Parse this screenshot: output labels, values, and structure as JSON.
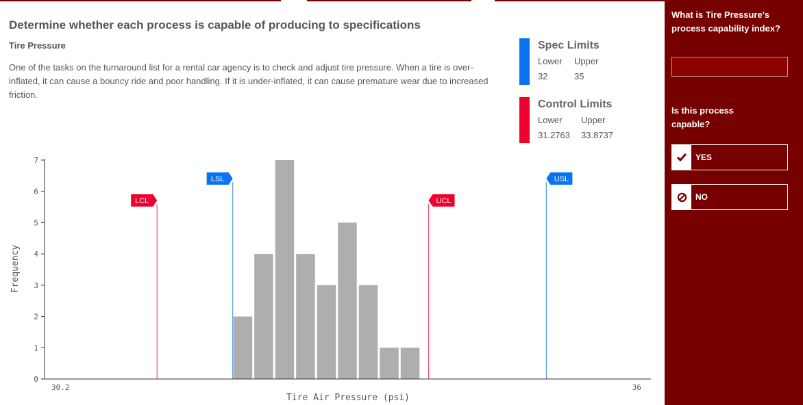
{
  "title": "Determine whether each process is capable of producing to specifications",
  "subtitle": "Tire Pressure",
  "description": "One of the tasks on the turnaround list for a rental car agency is to check and adjust tire pressure. When a tire is over-inflated, it can cause a bouncy ride and poor handling. If it is under-inflated, it can cause premature wear due to increased friction.",
  "spec_limits": {
    "title": "Spec Limits",
    "lower_label": "Lower",
    "upper_label": "Upper",
    "lower": "32",
    "upper": "35",
    "color": "#0a74f0"
  },
  "control_limits": {
    "title": "Control Limits",
    "lower_label": "Lower",
    "upper_label": "Upper",
    "lower": "31.2763",
    "upper": "33.8737",
    "color": "#f0002e"
  },
  "chart_data": {
    "type": "bar",
    "xlabel": "Tire Air Pressure (psi)",
    "ylabel": "Frequency",
    "xlim": [
      30.2,
      36
    ],
    "ylim": [
      0,
      7
    ],
    "x_tick_labels": [
      "30.2",
      "36"
    ],
    "y_ticks": [
      "0",
      "1",
      "2",
      "3",
      "4",
      "5",
      "6",
      "7"
    ],
    "bin_start": 32,
    "bin_width": 0.2,
    "values": [
      2,
      4,
      7,
      4,
      3,
      5,
      3,
      1,
      1
    ],
    "bar_color": "#aeaeae",
    "markers": [
      {
        "label": "LCL",
        "value": 31.2763,
        "level": 5.6,
        "color": "#f0002e",
        "side": "left"
      },
      {
        "label": "LSL",
        "value": 32,
        "level": 6.3,
        "color": "#0a74f0",
        "side": "left"
      },
      {
        "label": "UCL",
        "value": 33.8737,
        "level": 5.6,
        "color": "#f0002e",
        "side": "right"
      },
      {
        "label": "USL",
        "value": 35,
        "level": 6.3,
        "color": "#0a74f0",
        "side": "right"
      }
    ]
  },
  "sidebar": {
    "q1": "What is Tire Pressure's process capability index?",
    "answer_value": "",
    "q2": "Is this process capable?",
    "yes_label": "YES",
    "no_label": "NO"
  },
  "colors": {
    "sidebar_bg": "#760000",
    "accent": "#760000"
  }
}
